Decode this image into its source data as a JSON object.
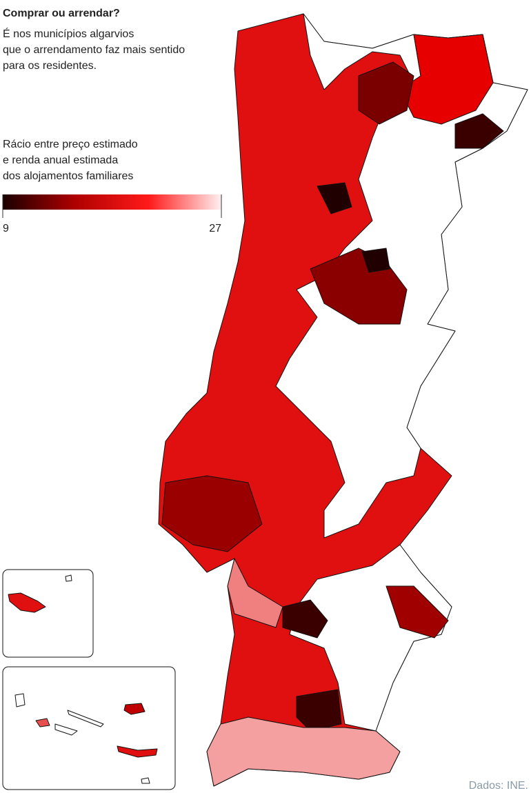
{
  "header": {
    "title": "Comprar ou arrendar?",
    "subtitle_lines": [
      "É nos municípios algarvios",
      "que o arrendamento faz mais sentido",
      "para os residentes."
    ]
  },
  "legend": {
    "title_lines": [
      "Rácio entre preço estimado",
      "e renda anual estimada",
      "dos alojamentos familiares"
    ],
    "min": 9,
    "max": 27,
    "colors": [
      "#1a0000",
      "#b00000",
      "#ff1a1a",
      "#fff0f0"
    ]
  },
  "source": "Dados: INE."
}
